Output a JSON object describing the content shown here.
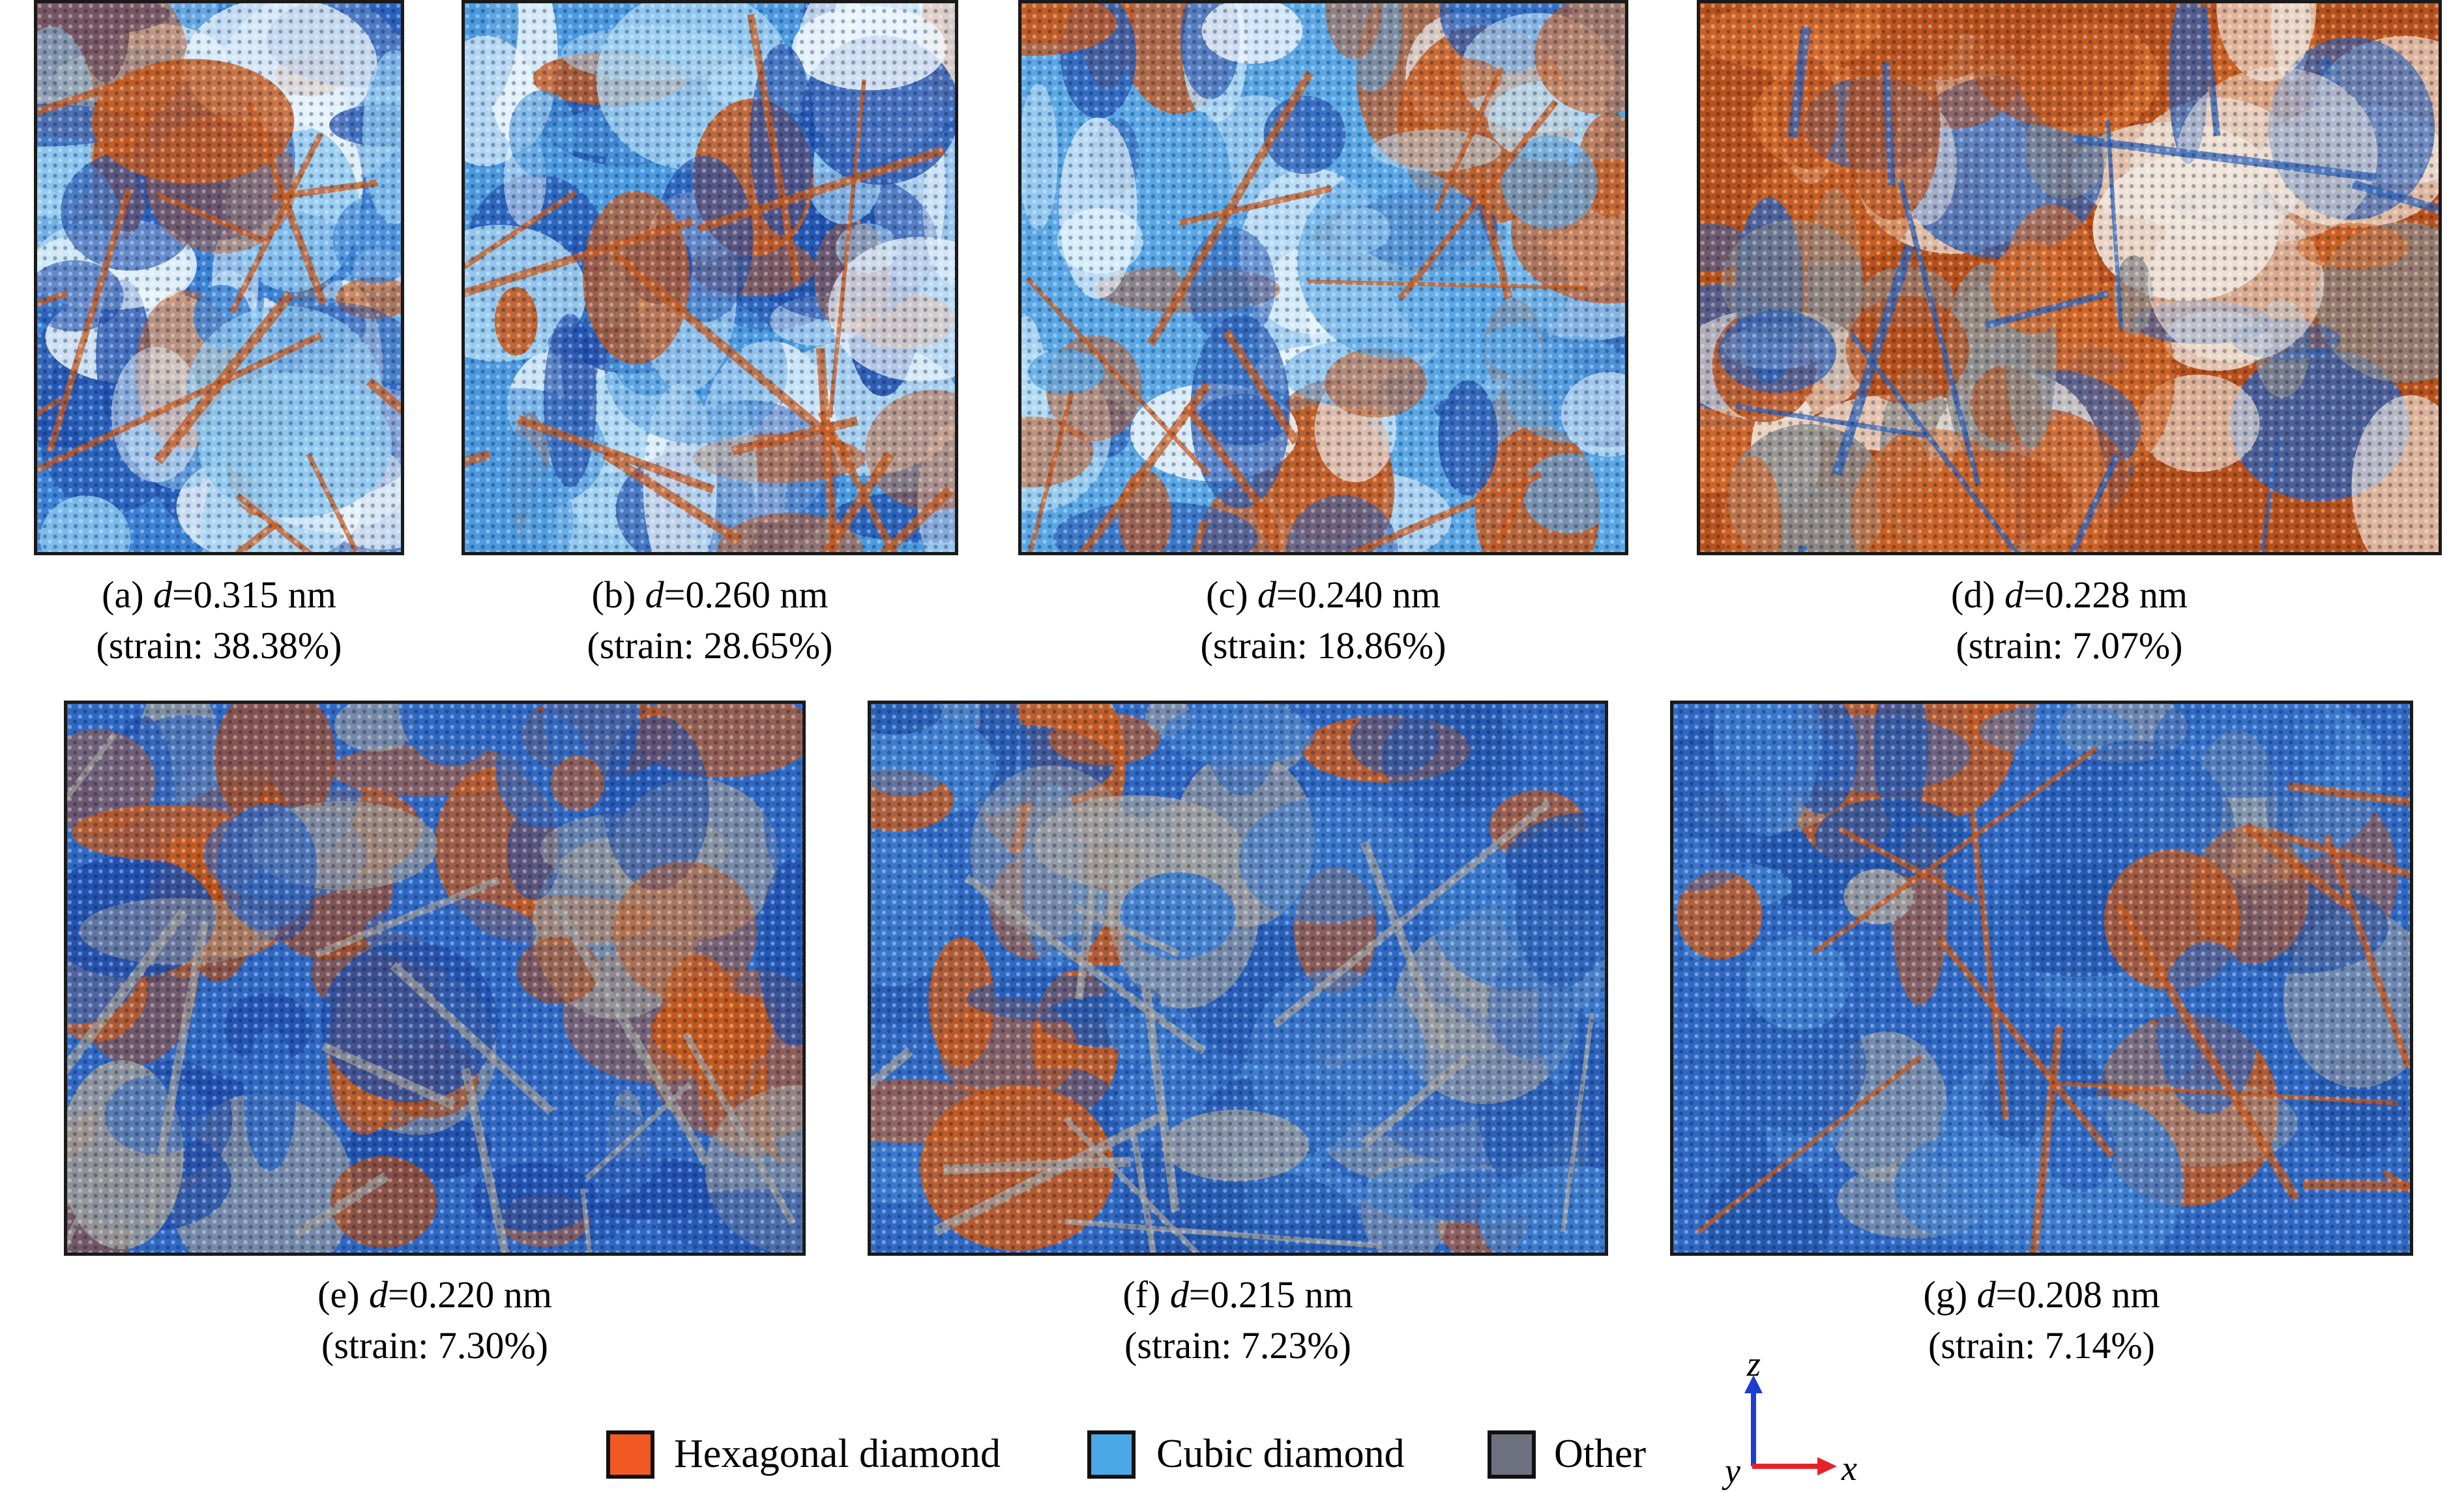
{
  "panels": [
    {
      "id": "a",
      "prefix": "(a) ",
      "var": "d",
      "eq": "=0.315 nm",
      "strain": "(strain: 38.38%)",
      "colors": [
        "#3b82d6",
        "#8cc8f0",
        "#e8f4fb",
        "#c65a1e",
        "#1f4fae"
      ]
    },
    {
      "id": "b",
      "prefix": "(b) ",
      "var": "d",
      "eq": "=0.260 nm",
      "strain": "(strain: 28.65%)",
      "colors": [
        "#4b9ae0",
        "#a8d6f4",
        "#eef7fc",
        "#c65a1e",
        "#1f4fae"
      ]
    },
    {
      "id": "c",
      "prefix": "(c) ",
      "var": "d",
      "eq": "=0.240 nm",
      "strain": "(strain: 18.86%)",
      "colors": [
        "#5aa7e6",
        "#b9def6",
        "#f1f8fd",
        "#c65a1e",
        "#2b5fb8"
      ]
    },
    {
      "id": "d",
      "prefix": "(d) ",
      "var": "d",
      "eq": "=0.228 nm",
      "strain": "(strain: 7.07%)",
      "colors": [
        "#b8501a",
        "#d46a2a",
        "#f0e6dc",
        "#2f63b8",
        "#8a8a8a"
      ]
    },
    {
      "id": "e",
      "prefix": "(e) ",
      "var": "d",
      "eq": "=0.220 nm",
      "strain": "(strain: 7.30%)",
      "colors": [
        "#2f69c4",
        "#c65a1e",
        "#b24a14",
        "#9a9a9a",
        "#1f4fae"
      ]
    },
    {
      "id": "f",
      "prefix": "(f) ",
      "var": "d",
      "eq": "=0.215 nm",
      "strain": "(strain: 7.23%)",
      "colors": [
        "#2f69c4",
        "#2458b0",
        "#c65a1e",
        "#a0a0a0",
        "#3f7fd0"
      ]
    },
    {
      "id": "g",
      "prefix": "(g) ",
      "var": "d",
      "eq": "=0.208 nm",
      "strain": "(strain: 7.14%)",
      "colors": [
        "#2f69c4",
        "#2458b0",
        "#a0a0a0",
        "#c65a1e",
        "#3f7fd0"
      ]
    }
  ],
  "legend": [
    {
      "label": "Hexagonal diamond",
      "color": "#f05a22"
    },
    {
      "label": "Cubic diamond",
      "color": "#4aa8e6"
    },
    {
      "label": "Other",
      "color": "#6d7180"
    }
  ],
  "axes": {
    "z": "z",
    "y": "y",
    "x": "x",
    "z_color": "#1c3fd0",
    "x_color": "#e8202a"
  }
}
